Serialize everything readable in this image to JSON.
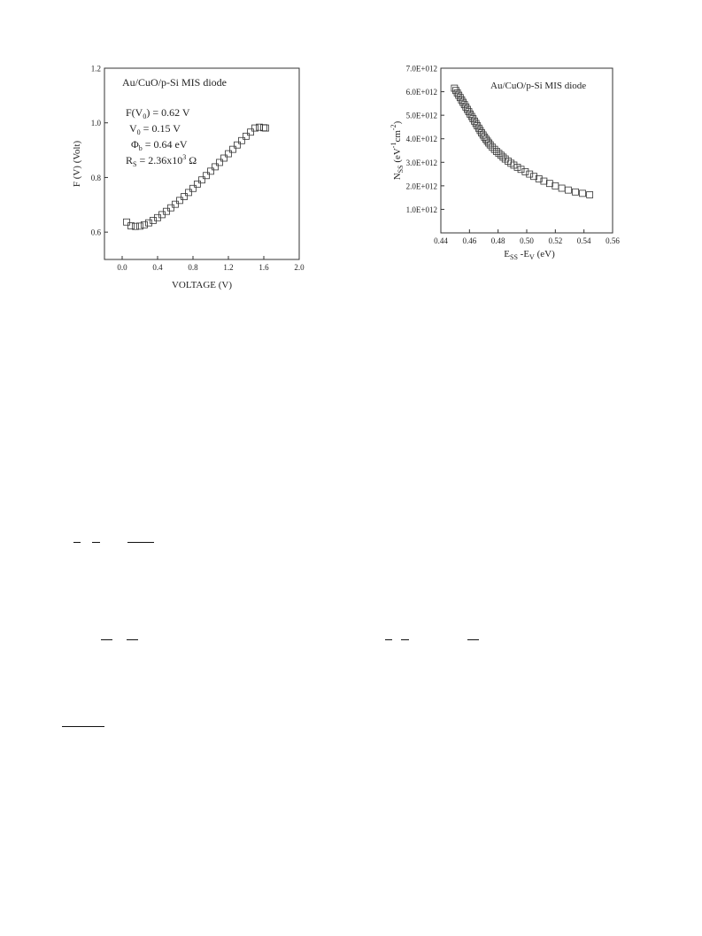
{
  "chart_data": [
    {
      "type": "scatter",
      "marker": "open-square",
      "legend_title": "Au/CuO/p-Si MIS diode",
      "annotations": [
        {
          "base": "F(V",
          "sub": "0",
          "tail": ") = 0.62 V"
        },
        {
          "base": "V",
          "sub": "0",
          "tail": " = 0.15 V"
        },
        {
          "base": "Φ",
          "sub": "b",
          "tail": " = 0.64 eV"
        },
        {
          "base": "R",
          "sub": "S",
          "tail": " = 2.36x10",
          "sup": "3",
          "tail2": " Ω"
        }
      ],
      "xlabel": "VOLTAGE (V)",
      "ylabel": "F (V) (Volt)",
      "xlim": [
        -0.2,
        2.0
      ],
      "ylim": [
        0.5,
        1.2
      ],
      "xticks": [
        "0.0",
        "0.4",
        "0.8",
        "1.2",
        "1.6",
        "2.0"
      ],
      "yticks": [
        "0.6",
        "0.8",
        "1.0",
        "1.2"
      ],
      "x": [
        0.05,
        0.1,
        0.15,
        0.2,
        0.25,
        0.3,
        0.35,
        0.4,
        0.45,
        0.5,
        0.55,
        0.6,
        0.65,
        0.7,
        0.75,
        0.8,
        0.85,
        0.9,
        0.95,
        1.0,
        1.05,
        1.1,
        1.15,
        1.2,
        1.25,
        1.3,
        1.35,
        1.4,
        1.45,
        1.5,
        1.55,
        1.6,
        1.62
      ],
      "y": [
        0.637,
        0.623,
        0.621,
        0.622,
        0.627,
        0.634,
        0.643,
        0.653,
        0.664,
        0.676,
        0.689,
        0.702,
        0.716,
        0.73,
        0.745,
        0.76,
        0.776,
        0.791,
        0.807,
        0.823,
        0.839,
        0.855,
        0.871,
        0.887,
        0.903,
        0.919,
        0.935,
        0.951,
        0.966,
        0.981,
        0.984,
        0.982,
        0.981
      ]
    },
    {
      "type": "scatter",
      "marker": "open-square",
      "legend_title": "Au/CuO/p-Si MIS diode",
      "xlabel": {
        "base": "E",
        "sub1": "SS",
        "mid": " -E",
        "sub2": "V",
        "tail": " (eV)"
      },
      "ylabel": {
        "base": "N",
        "sub": "SS",
        "tail": " (eV",
        "sup1": "-1",
        "mid": "cm",
        "sup2": "-2",
        "end": ")"
      },
      "xlim": [
        0.44,
        0.56
      ],
      "ylim": [
        0.0,
        7000000000000.0
      ],
      "xticks": [
        "0.44",
        "0.46",
        "0.48",
        "0.50",
        "0.52",
        "0.54",
        "0.56"
      ],
      "yticks": [
        "1.0E+012",
        "2.0E+012",
        "3.0E+012",
        "4.0E+012",
        "5.0E+012",
        "6.0E+012",
        "7.0E+012"
      ],
      "x": [
        0.4495,
        0.4505,
        0.4515,
        0.4525,
        0.4535,
        0.4545,
        0.4555,
        0.4565,
        0.4575,
        0.4585,
        0.4595,
        0.4605,
        0.4615,
        0.4625,
        0.4635,
        0.4645,
        0.4655,
        0.4665,
        0.4675,
        0.4685,
        0.4695,
        0.4705,
        0.4715,
        0.4725,
        0.4735,
        0.4745,
        0.476,
        0.4775,
        0.479,
        0.4805,
        0.482,
        0.4835,
        0.485,
        0.487,
        0.489,
        0.491,
        0.4935,
        0.496,
        0.499,
        0.502,
        0.505,
        0.5085,
        0.512,
        0.516,
        0.52,
        0.5245,
        0.529,
        0.534,
        0.539,
        0.544
      ],
      "y": [
        6150000000000.0,
        6050000000000.0,
        5950000000000.0,
        5850000000000.0,
        5750000000000.0,
        5650000000000.0,
        5550000000000.0,
        5450000000000.0,
        5350000000000.0,
        5250000000000.0,
        5150000000000.0,
        5050000000000.0,
        4950000000000.0,
        4850000000000.0,
        4750000000000.0,
        4650000000000.0,
        4550000000000.0,
        4450000000000.0,
        4350000000000.0,
        4250000000000.0,
        4160000000000.0,
        4070000000000.0,
        3980000000000.0,
        3900000000000.0,
        3820000000000.0,
        3740000000000.0,
        3640000000000.0,
        3550000000000.0,
        3460000000000.0,
        3380000000000.0,
        3300000000000.0,
        3220000000000.0,
        3140000000000.0,
        3050000000000.0,
        2960000000000.0,
        2880000000000.0,
        2790000000000.0,
        2700000000000.0,
        2600000000000.0,
        2500000000000.0,
        2400000000000.0,
        2300000000000.0,
        2200000000000.0,
        2100000000000.0,
        2000000000000.0,
        1900000000000.0,
        1820000000000.0,
        1740000000000.0,
        1680000000000.0,
        1620000000000.0
      ]
    }
  ]
}
